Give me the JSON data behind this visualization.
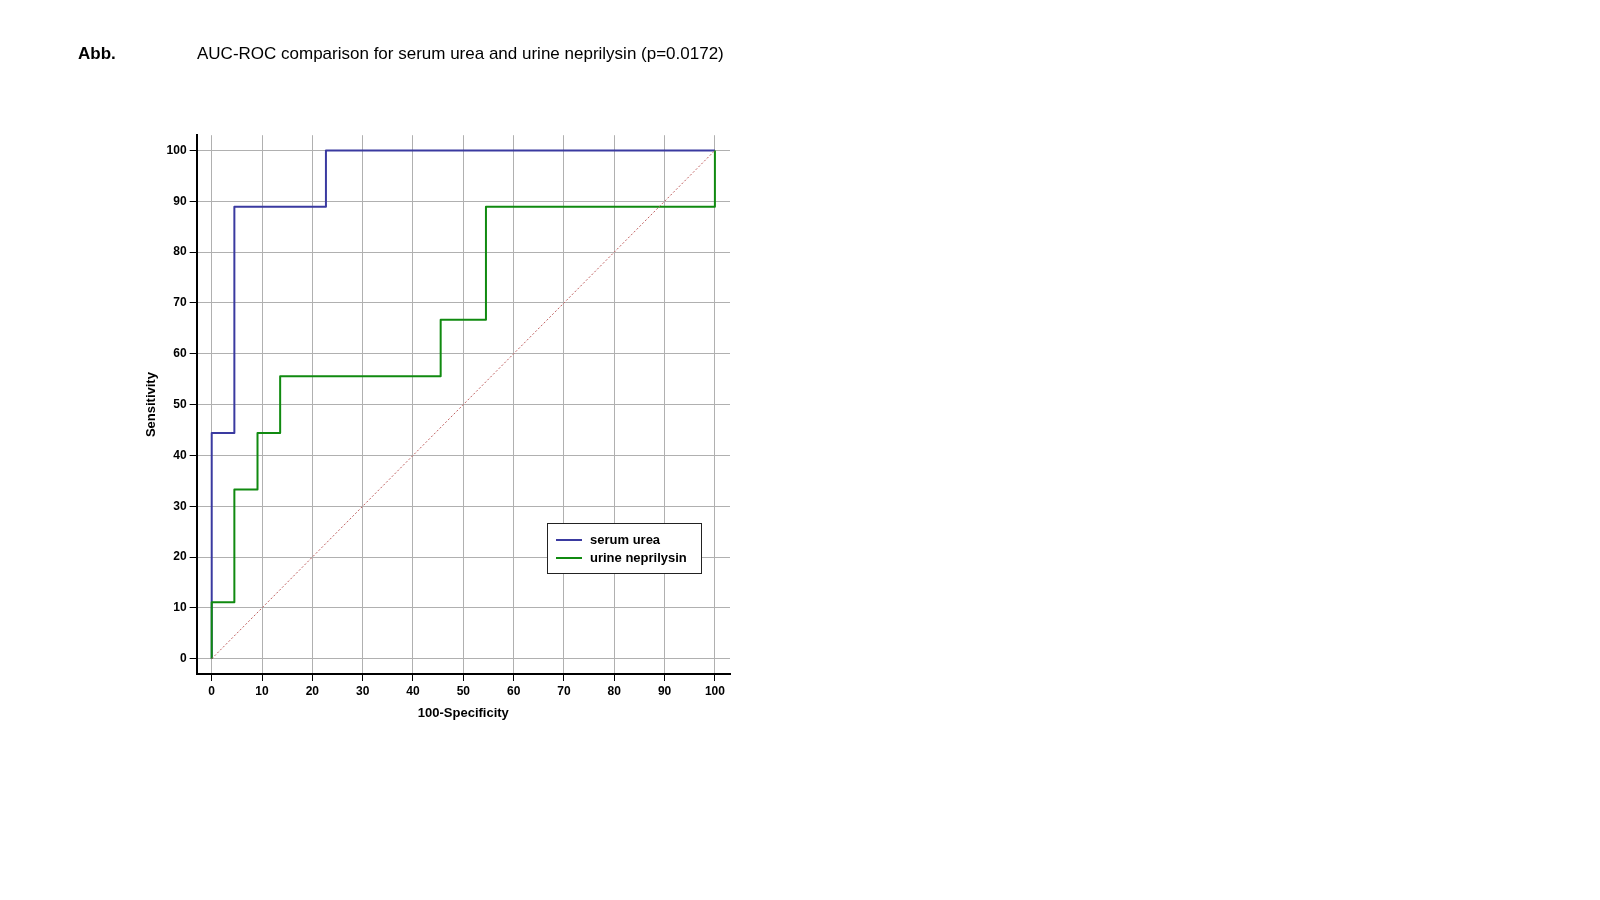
{
  "chart_data": {
    "type": "step",
    "title": "AUC-ROC comparison for serum urea and urine neprilysin (p=0.0172)",
    "xlabel": "100-Specificity",
    "ylabel": "Sensitivity",
    "annotations": [
      "Abb."
    ],
    "xlim": [
      -3,
      103
    ],
    "ylim": [
      -3,
      103
    ],
    "xticks": [
      0,
      10,
      20,
      30,
      40,
      50,
      60,
      70,
      80,
      90,
      100
    ],
    "yticks": [
      0,
      10,
      20,
      30,
      40,
      50,
      60,
      70,
      80,
      90,
      100
    ],
    "grid": true,
    "legend": "bottom right",
    "marker": "none",
    "series": [
      {
        "name": "serum urea",
        "color": "#3a3aa0",
        "x": [
          0,
          0,
          4.5,
          22.7,
          100
        ],
        "values": [
          0,
          44.4,
          88.9,
          100,
          100
        ]
      },
      {
        "name": "urine neprilysin",
        "color": "#108a10",
        "x": [
          0,
          0,
          4.5,
          9.1,
          13.6,
          45.5,
          54.5,
          100
        ],
        "values": [
          0,
          11.1,
          33.3,
          44.4,
          55.6,
          66.7,
          88.9,
          100
        ]
      },
      {
        "type": "line",
        "color": "#c06060",
        "line_style": "dotted",
        "x": [
          0,
          100
        ],
        "values": [
          0,
          100
        ]
      }
    ]
  }
}
